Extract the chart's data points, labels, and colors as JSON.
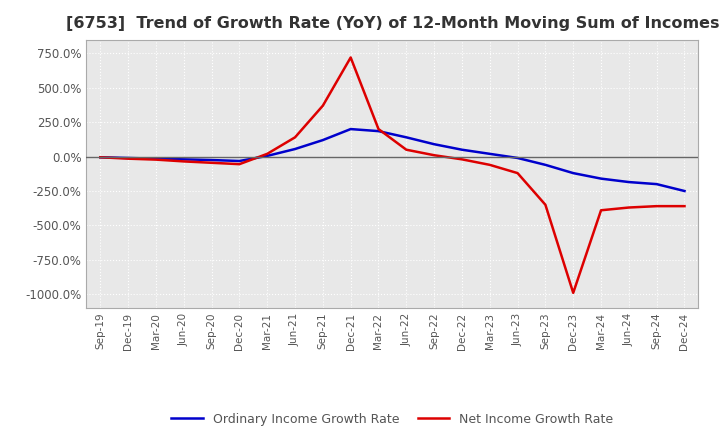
{
  "title": "[6753]  Trend of Growth Rate (YoY) of 12-Month Moving Sum of Incomes",
  "title_fontsize": 11.5,
  "legend_labels": [
    "Ordinary Income Growth Rate",
    "Net Income Growth Rate"
  ],
  "legend_colors": [
    "#0000cc",
    "#dd0000"
  ],
  "ylim": [
    -1100,
    850
  ],
  "yticks": [
    -1000,
    -750,
    -500,
    -250,
    0,
    250,
    500,
    750
  ],
  "yticklabels": [
    "-1000.0%",
    "-750.0%",
    "-500.0%",
    "-250.0%",
    "0.0%",
    "250.0%",
    "500.0%",
    "750.0%"
  ],
  "background_color": "#ffffff",
  "plot_bg_color": "#e8e8e8",
  "grid_color": "#ffffff",
  "xtick_labels": [
    "Sep-19",
    "Dec-19",
    "Mar-20",
    "Jun-20",
    "Sep-20",
    "Dec-20",
    "Mar-21",
    "Jun-21",
    "Sep-21",
    "Dec-21",
    "Mar-22",
    "Jun-22",
    "Sep-22",
    "Dec-22",
    "Mar-23",
    "Jun-23",
    "Sep-23",
    "Dec-23",
    "Mar-24",
    "Jun-24",
    "Sep-24",
    "Dec-24"
  ],
  "ordinary_income_growth": [
    -5,
    -10,
    -15,
    -20,
    -25,
    -32,
    5,
    55,
    120,
    200,
    185,
    140,
    90,
    50,
    20,
    -10,
    -60,
    -120,
    -160,
    -185,
    -200,
    -250
  ],
  "net_income_growth": [
    -5,
    -15,
    -22,
    -35,
    -45,
    -55,
    20,
    140,
    370,
    720,
    200,
    50,
    10,
    -20,
    -60,
    -120,
    -350,
    -990,
    -390,
    -370,
    -360,
    -360
  ]
}
